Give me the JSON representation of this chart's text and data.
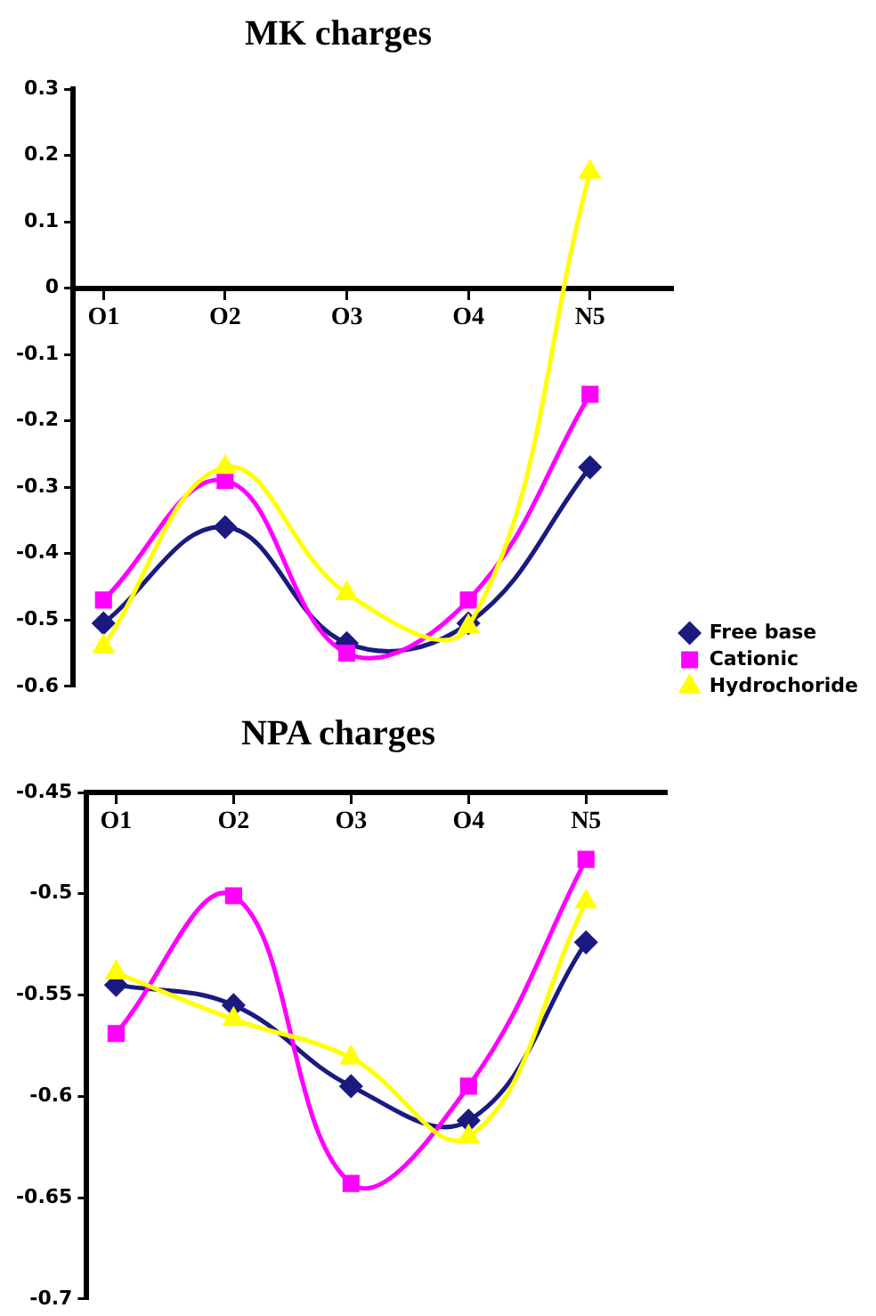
{
  "chart_data": [
    {
      "type": "line",
      "title": "MK charges",
      "categories": [
        "O1",
        "O2",
        "O3",
        "O4",
        "N5"
      ],
      "ylim": [
        -0.6,
        0.3
      ],
      "yticks": [
        -0.6,
        -0.5,
        -0.4,
        -0.3,
        -0.2,
        -0.1,
        0,
        0.1,
        0.2,
        0.3
      ],
      "grid": false,
      "legend": "bottom right",
      "series": [
        {
          "name": "Free base",
          "color": "#1a1a80",
          "marker": "diamond",
          "values": [
            -0.505,
            -0.36,
            -0.535,
            -0.505,
            -0.27
          ]
        },
        {
          "name": "Cationic",
          "color": "#ff00ff",
          "marker": "square",
          "values": [
            -0.47,
            -0.29,
            -0.55,
            -0.47,
            -0.16
          ]
        },
        {
          "name": "Hydrochoride",
          "color": "#ffff00",
          "marker": "triangle",
          "values": [
            -0.54,
            -0.27,
            -0.46,
            -0.51,
            0.175
          ]
        }
      ]
    },
    {
      "type": "line",
      "title": "NPA charges",
      "categories": [
        "O1",
        "O2",
        "O3",
        "O4",
        "N5"
      ],
      "ylim": [
        -0.7,
        -0.45
      ],
      "yticks": [
        -0.7,
        -0.65,
        -0.6,
        -0.55,
        -0.5,
        -0.45
      ],
      "grid": false,
      "series": [
        {
          "color": "#1a1a80",
          "marker": "diamond",
          "values": [
            -0.545,
            -0.555,
            -0.595,
            -0.612,
            -0.524
          ]
        },
        {
          "color": "#ff00ff",
          "marker": "square",
          "values": [
            -0.569,
            -0.501,
            -0.643,
            -0.595,
            -0.483
          ]
        },
        {
          "color": "#ffff00",
          "marker": "triangle",
          "values": [
            -0.539,
            -0.562,
            -0.581,
            -0.62,
            -0.504
          ]
        }
      ]
    }
  ]
}
